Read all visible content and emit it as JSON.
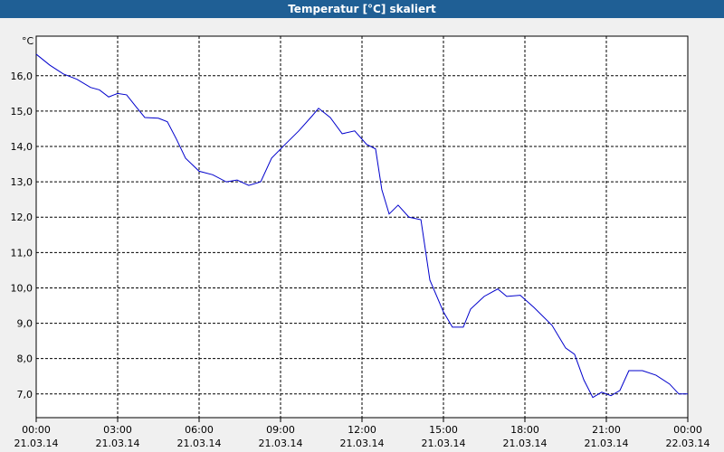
{
  "chart_data": {
    "type": "line",
    "title": "Temperatur [°C] skaliert",
    "ylabel": "°C",
    "grid": true,
    "xlim": [
      0,
      24
    ],
    "xticks": [
      {
        "value": 0,
        "label": "00:00",
        "date": "21.03.14"
      },
      {
        "value": 3,
        "label": "03:00",
        "date": "21.03.14"
      },
      {
        "value": 6,
        "label": "06:00",
        "date": "21.03.14"
      },
      {
        "value": 9,
        "label": "09:00",
        "date": "21.03.14"
      },
      {
        "value": 12,
        "label": "12:00",
        "date": "21.03.14"
      },
      {
        "value": 15,
        "label": "15:00",
        "date": "21.03.14"
      },
      {
        "value": 18,
        "label": "18:00",
        "date": "21.03.14"
      },
      {
        "value": 21,
        "label": "21:00",
        "date": "21.03.14"
      },
      {
        "value": 24,
        "label": "00:00",
        "date": "22.03.14"
      }
    ],
    "ylim": [
      6.33,
      17.12
    ],
    "yticks": [
      {
        "value": 7,
        "label": "7,0"
      },
      {
        "value": 8,
        "label": "8,0"
      },
      {
        "value": 9,
        "label": "9,0"
      },
      {
        "value": 10,
        "label": "10,0"
      },
      {
        "value": 11,
        "label": "11,0"
      },
      {
        "value": 12,
        "label": "12,0"
      },
      {
        "value": 13,
        "label": "13,0"
      },
      {
        "value": 14,
        "label": "14,0"
      },
      {
        "value": 15,
        "label": "15,0"
      },
      {
        "value": 16,
        "label": "16,0"
      }
    ],
    "x": [
      0,
      0.5,
      1,
      1.5,
      2,
      2.33,
      2.67,
      3,
      3.33,
      3.67,
      4,
      4.5,
      4.83,
      5.17,
      5.5,
      6,
      6.5,
      7,
      7.4,
      7.83,
      8.27,
      8.67,
      9.17,
      9.67,
      10.17,
      10.4,
      10.83,
      11.27,
      11.73,
      12.17,
      12.5,
      12.73,
      13,
      13.33,
      13.73,
      14.17,
      14.5,
      15,
      15.33,
      15.73,
      16,
      16.5,
      17,
      17.33,
      17.83,
      18.33,
      19,
      19.5,
      19.83,
      20.17,
      20.5,
      20.83,
      21.17,
      21.5,
      21.83,
      22.33,
      22.83,
      23.33,
      23.67,
      24
    ],
    "series": [
      {
        "color": "#0000cc",
        "values": [
          16.61,
          16.3,
          16.05,
          15.9,
          15.67,
          15.6,
          15.4,
          15.5,
          15.46,
          15.13,
          14.82,
          14.8,
          14.7,
          14.2,
          13.67,
          13.3,
          13.2,
          13.0,
          13.05,
          12.9,
          13.0,
          13.67,
          14.06,
          14.44,
          14.87,
          15.08,
          14.82,
          14.36,
          14.44,
          14.06,
          13.93,
          12.78,
          12.09,
          12.34,
          12.0,
          11.93,
          10.22,
          9.32,
          8.89,
          8.89,
          9.4,
          9.76,
          9.97,
          9.76,
          9.79,
          9.45,
          8.94,
          8.3,
          8.12,
          7.4,
          6.9,
          7.05,
          6.95,
          7.1,
          7.66,
          7.66,
          7.53,
          7.28,
          7.0,
          7.0
        ]
      }
    ]
  }
}
